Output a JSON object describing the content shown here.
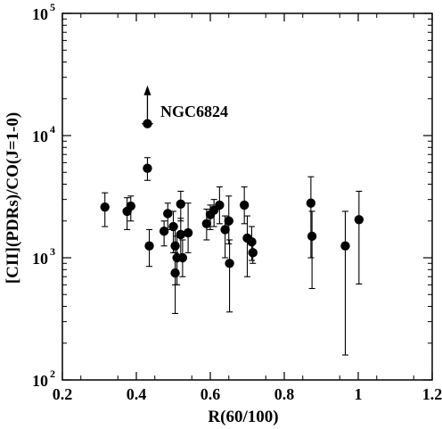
{
  "chart_data": {
    "type": "scatter",
    "title": "",
    "xlabel": "R(60/100)",
    "ylabel": "[CII](PDRs)/CO(J=1-0)",
    "xlim": [
      0.2,
      1.2
    ],
    "ylim": [
      100,
      100000
    ],
    "yscale": "log",
    "xticks": [
      "0.2",
      "0.4",
      "0.6",
      "0.8",
      "1",
      "1.2"
    ],
    "yticks": [
      {
        "base": "10",
        "exp": "2"
      },
      {
        "base": "10",
        "exp": "3"
      },
      {
        "base": "10",
        "exp": "4"
      },
      {
        "base": "10",
        "exp": "5"
      }
    ],
    "grid": false,
    "marker_color": "#000000",
    "annotation": {
      "text": "NGC6824",
      "x": 0.43,
      "y": 12500,
      "lower_limit": true
    },
    "points": [
      {
        "x": 0.43,
        "y": 12500,
        "yerr_low": 12500,
        "yerr_high": 12500,
        "xerr": 0.015,
        "lower_limit": true
      },
      {
        "x": 0.43,
        "y": 5400,
        "yerr_low": 4300,
        "yerr_high": 6600
      },
      {
        "x": 0.315,
        "y": 2600,
        "yerr_low": 1800,
        "yerr_high": 3400
      },
      {
        "x": 0.375,
        "y": 2400,
        "yerr_low": 1700,
        "yerr_high": 3100
      },
      {
        "x": 0.385,
        "y": 2650,
        "yerr_low": 2000,
        "yerr_high": 3200
      },
      {
        "x": 0.435,
        "y": 1250,
        "yerr_low": 850,
        "yerr_high": 1700
      },
      {
        "x": 0.475,
        "y": 1650,
        "yerr_low": 1250,
        "yerr_high": 2000
      },
      {
        "x": 0.485,
        "y": 2300,
        "yerr_low": 1700,
        "yerr_high": 2800
      },
      {
        "x": 0.5,
        "y": 1800,
        "yerr_low": 1100,
        "yerr_high": 2400
      },
      {
        "x": 0.505,
        "y": 1250,
        "yerr_low": 600,
        "yerr_high": 1800
      },
      {
        "x": 0.505,
        "y": 750,
        "yerr_low": 350,
        "yerr_high": 1100
      },
      {
        "x": 0.51,
        "y": 1000,
        "yerr_low": 600,
        "yerr_high": 1500
      },
      {
        "x": 0.52,
        "y": 2750,
        "yerr_low": 2000,
        "yerr_high": 3500
      },
      {
        "x": 0.52,
        "y": 1550,
        "yerr_low": 1000,
        "yerr_high": 2100
      },
      {
        "x": 0.525,
        "y": 1000,
        "yerr_low": 700,
        "yerr_high": 1400
      },
      {
        "x": 0.54,
        "y": 1600,
        "yerr_low": 1100,
        "yerr_high": 2800
      },
      {
        "x": 0.59,
        "y": 1900,
        "yerr_low": 1400,
        "yerr_high": 2500
      },
      {
        "x": 0.6,
        "y": 2250,
        "yerr_low": 1700,
        "yerr_high": 2700
      },
      {
        "x": 0.61,
        "y": 2450,
        "yerr_low": 1800,
        "yerr_high": 3000
      },
      {
        "x": 0.625,
        "y": 2700,
        "yerr_low": 1900,
        "yerr_high": 3800
      },
      {
        "x": 0.64,
        "y": 1700,
        "yerr_low": 1000,
        "yerr_high": 2200
      },
      {
        "x": 0.65,
        "y": 2000,
        "yerr_low": 1300,
        "yerr_high": 3200
      },
      {
        "x": 0.652,
        "y": 900,
        "yerr_low": 360,
        "yerr_high": 1400
      },
      {
        "x": 0.692,
        "y": 2700,
        "yerr_low": 1900,
        "yerr_high": 3800
      },
      {
        "x": 0.7,
        "y": 1450,
        "yerr_low": 700,
        "yerr_high": 2200
      },
      {
        "x": 0.712,
        "y": 1350,
        "yerr_low": 950,
        "yerr_high": 1800
      },
      {
        "x": 0.715,
        "y": 1100,
        "yerr_low": 900,
        "yerr_high": 1300
      },
      {
        "x": 0.872,
        "y": 2800,
        "yerr_low": 1000,
        "yerr_high": 4600
      },
      {
        "x": 0.875,
        "y": 1500,
        "yerr_low": 560,
        "yerr_high": 2400
      },
      {
        "x": 0.965,
        "y": 1250,
        "yerr_low": 160,
        "yerr_high": 2400
      },
      {
        "x": 1.002,
        "y": 2050,
        "yerr_low": 610,
        "yerr_high": 3500
      }
    ]
  }
}
